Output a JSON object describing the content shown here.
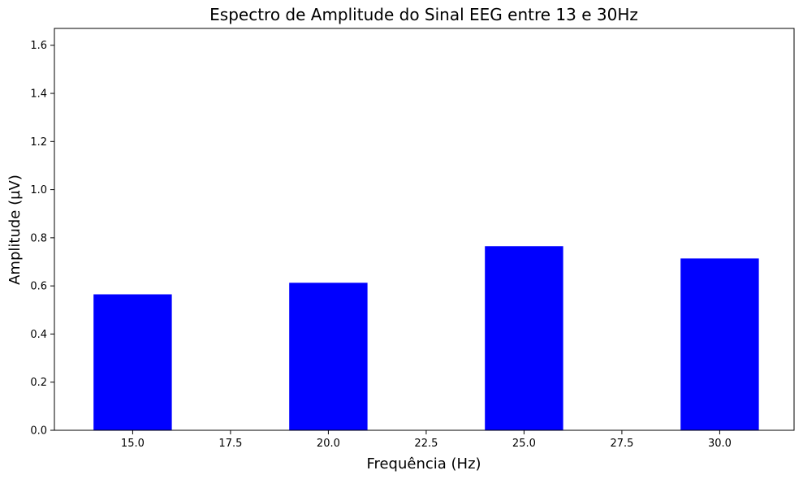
{
  "chart_data": {
    "type": "bar",
    "title": "Espectro de Amplitude do Sinal EEG entre 13 e 30Hz",
    "xlabel": "Frequência (Hz)",
    "ylabel": "Amplitude (µV)",
    "x": [
      15,
      20,
      25,
      30
    ],
    "values": [
      0.565,
      0.613,
      0.765,
      0.714
    ],
    "bar_width": 2,
    "color": "#0000ff",
    "xlim": [
      13,
      31.9
    ],
    "ylim": [
      0,
      1.67
    ],
    "xticks": [
      "15.0",
      "17.5",
      "20.0",
      "22.5",
      "25.0",
      "27.5",
      "30.0"
    ],
    "yticks": [
      "0.0",
      "0.2",
      "0.4",
      "0.6",
      "0.8",
      "1.0",
      "1.2",
      "1.4",
      "1.6"
    ],
    "grid": false,
    "legend": "none"
  }
}
